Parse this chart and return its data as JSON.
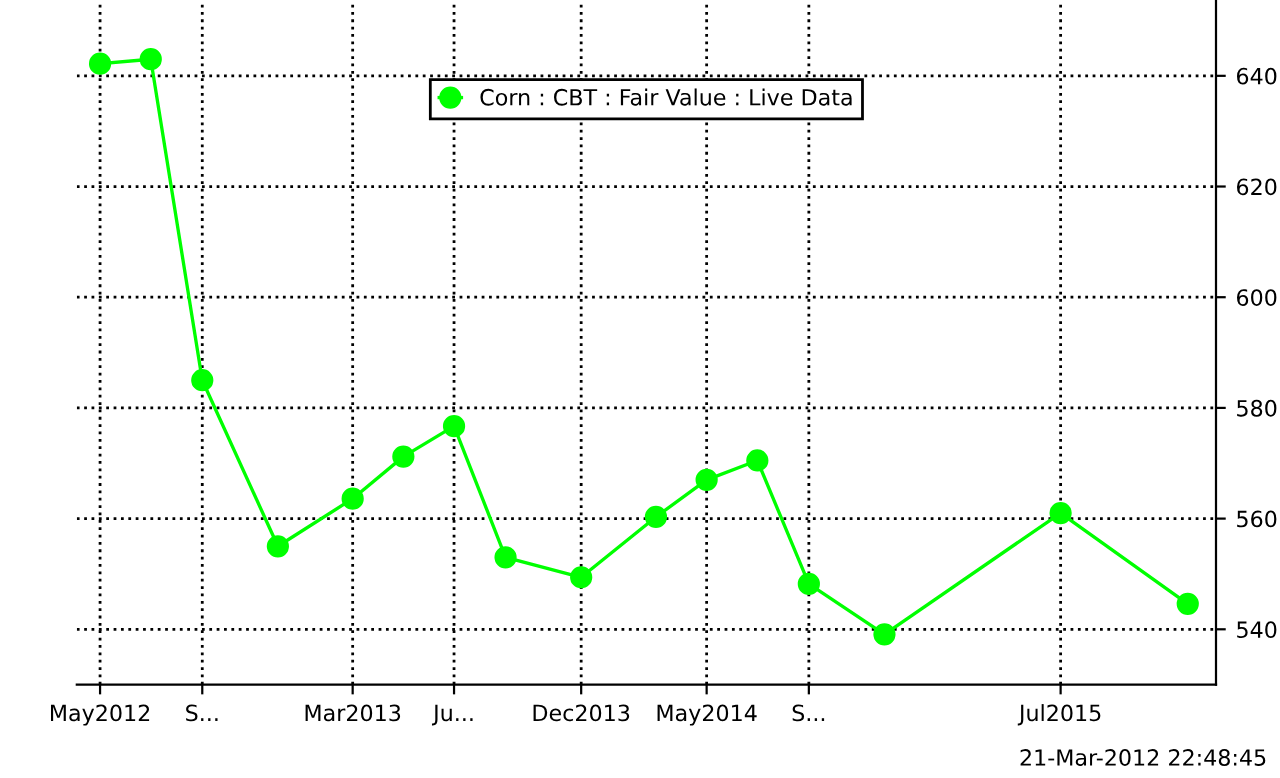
{
  "chart_data": {
    "type": "line",
    "x": [
      "2012-05",
      "2012-07",
      "2012-09",
      "2012-12",
      "2013-03",
      "2013-05",
      "2013-07",
      "2013-09",
      "2013-12",
      "2014-03",
      "2014-05",
      "2014-07",
      "2014-09",
      "2014-12",
      "2015-07",
      "2015-12"
    ],
    "series": [
      {
        "name": "Corn : CBT : Fair Value : Live Data",
        "color": "#00ff00",
        "values": [
          642.2,
          643,
          585,
          555,
          563.6,
          571.2,
          576.7,
          553,
          549.4,
          560.3,
          567,
          570.5,
          548.2,
          539.1,
          561,
          544.6
        ]
      }
    ],
    "xlim": [
      "2012-04-03",
      "2016-01-04"
    ],
    "xticks": [
      {
        "value": "2012-05",
        "label": "May2012"
      },
      {
        "value": "2012-09",
        "label": "S..."
      },
      {
        "value": "2013-03",
        "label": "Mar2013"
      },
      {
        "value": "2013-07",
        "label": "Ju..."
      },
      {
        "value": "2013-12",
        "label": "Dec2013"
      },
      {
        "value": "2014-05",
        "label": "May2014"
      },
      {
        "value": "2014-09",
        "label": "S..."
      },
      {
        "value": "2015-07",
        "label": "Jul2015"
      }
    ],
    "ylim": [
      530,
      653.7
    ],
    "yticks": [
      540,
      560,
      580,
      600,
      620,
      640
    ],
    "grid": true,
    "legend": "top",
    "marker": "circle",
    "line_style": "solid",
    "annotations": [
      "21-Mar-2012 22:48:45"
    ]
  }
}
